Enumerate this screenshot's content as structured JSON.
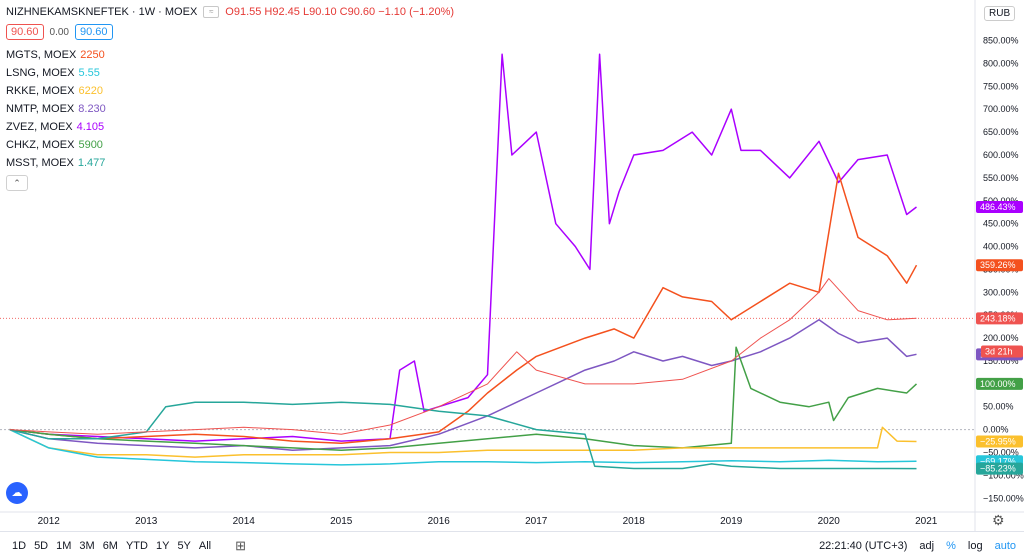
{
  "header": {
    "symbol": "NIZHNEKAMSKNEFTEK · 1W · MOEX",
    "ohlc": "O91.55 H92.45 L90.10 C90.60 −1.10 (−1.20%)",
    "price_left": "90.60",
    "price_mid": "0.00",
    "price_right": "90.60",
    "currency": "RUB"
  },
  "comparisons": [
    {
      "name": "MGTS, MOEX",
      "value": "2250",
      "color": "#f4511e"
    },
    {
      "name": "LSNG, MOEX",
      "value": "5.55",
      "color": "#26c6da"
    },
    {
      "name": "RKKE, MOEX",
      "value": "6220",
      "color": "#fbc02d"
    },
    {
      "name": "NMTP, MOEX",
      "value": "8.230",
      "color": "#7e57c2"
    },
    {
      "name": "ZVEZ, MOEX",
      "value": "4.105",
      "color": "#aa00ff"
    },
    {
      "name": "CHKZ, MOEX",
      "value": "5900",
      "color": "#43a047"
    },
    {
      "name": "MSST, MOEX",
      "value": "1.477",
      "color": "#26a69a"
    }
  ],
  "bottom": {
    "timeframes": [
      "1D",
      "5D",
      "1M",
      "3M",
      "6M",
      "YTD",
      "1Y",
      "5Y",
      "All"
    ],
    "calendar_icon": "calendar-icon",
    "time": "22:21:40 (UTC+3)",
    "adj": "adj",
    "percent": "%",
    "log": "log",
    "auto": "auto"
  },
  "chart_data": {
    "type": "line",
    "y_unit": "percent",
    "ylim": [
      -180,
      895
    ],
    "xlim": [
      2011.5,
      2021.5
    ],
    "x_ticks": [
      "2012",
      "2013",
      "2014",
      "2015",
      "2016",
      "2017",
      "2018",
      "2019",
      "2020",
      "2021"
    ],
    "x_tick_values": [
      2012,
      2013,
      2014,
      2015,
      2016,
      2017,
      2018,
      2019,
      2020,
      2021
    ],
    "y_ticks": [
      "850.00%",
      "800.00%",
      "750.00%",
      "700.00%",
      "650.00%",
      "600.00%",
      "550.00%",
      "500.00%",
      "450.00%",
      "400.00%",
      "350.00%",
      "300.00%",
      "250.00%",
      "200.00%",
      "150.00%",
      "100.00%",
      "50.00%",
      "0.00%",
      "−50.00%",
      "−100.00%",
      "−150.00%"
    ],
    "y_tick_values": [
      850,
      800,
      750,
      700,
      650,
      600,
      550,
      500,
      450,
      400,
      350,
      300,
      250,
      200,
      150,
      100,
      50,
      0,
      -50,
      -100,
      -150
    ],
    "grid": false,
    "series": [
      {
        "name": "ZVEZ",
        "color": "#aa00ff",
        "last_label": "486.43%",
        "last_value": 486.43,
        "x": [
          2011.6,
          2012.0,
          2012.5,
          2013.0,
          2013.5,
          2014.0,
          2014.5,
          2015.0,
          2015.5,
          2015.6,
          2015.75,
          2015.85,
          2016.0,
          2016.3,
          2016.5,
          2016.65,
          2016.75,
          2016.85,
          2017.0,
          2017.2,
          2017.4,
          2017.55,
          2017.65,
          2017.75,
          2017.85,
          2018.0,
          2018.3,
          2018.6,
          2018.8,
          2019.0,
          2019.1,
          2019.3,
          2019.6,
          2019.9,
          2020.1,
          2020.3,
          2020.6,
          2020.8,
          2020.9
        ],
        "values": [
          0,
          -10,
          -15,
          -20,
          -25,
          -20,
          -15,
          -25,
          -20,
          130,
          150,
          40,
          50,
          70,
          120,
          820,
          600,
          620,
          650,
          450,
          400,
          350,
          820,
          450,
          520,
          600,
          610,
          650,
          600,
          700,
          610,
          610,
          550,
          630,
          540,
          590,
          600,
          470,
          486.43
        ]
      },
      {
        "name": "MGTS",
        "color": "#f4511e",
        "last_label": "359.26%",
        "last_value": 359.26,
        "x": [
          2011.6,
          2012.0,
          2012.5,
          2013.0,
          2013.5,
          2014.0,
          2014.5,
          2015.0,
          2015.5,
          2016.0,
          2016.3,
          2016.5,
          2016.8,
          2017.0,
          2017.5,
          2017.8,
          2018.0,
          2018.3,
          2018.5,
          2018.8,
          2019.0,
          2019.3,
          2019.6,
          2019.9,
          2020.1,
          2020.3,
          2020.6,
          2020.8,
          2020.9
        ],
        "values": [
          0,
          -10,
          -20,
          -15,
          -10,
          -15,
          -25,
          -30,
          -20,
          -5,
          40,
          80,
          130,
          160,
          200,
          220,
          200,
          310,
          290,
          280,
          240,
          280,
          320,
          300,
          560,
          420,
          380,
          320,
          359.26
        ]
      },
      {
        "name": "NMTP",
        "color": "#7e57c2",
        "last_label": "164.46%",
        "last_value": 164.46,
        "x": [
          2011.6,
          2012.0,
          2012.5,
          2013.0,
          2013.5,
          2014.0,
          2014.5,
          2015.0,
          2015.5,
          2016.0,
          2016.5,
          2016.8,
          2017.0,
          2017.5,
          2017.8,
          2018.0,
          2018.3,
          2018.5,
          2018.8,
          2019.0,
          2019.3,
          2019.6,
          2019.9,
          2020.1,
          2020.3,
          2020.6,
          2020.8,
          2020.9
        ],
        "values": [
          0,
          -20,
          -30,
          -35,
          -40,
          -35,
          -45,
          -40,
          -35,
          -10,
          30,
          60,
          80,
          130,
          150,
          170,
          150,
          160,
          140,
          150,
          170,
          200,
          240,
          210,
          190,
          200,
          160,
          164.46
        ]
      },
      {
        "name": "CHKZ",
        "color": "#43a047",
        "last_label": "100.00%",
        "last_value": 100.0,
        "x": [
          2011.6,
          2012.0,
          2012.5,
          2013.0,
          2013.5,
          2014.0,
          2014.5,
          2015.0,
          2015.5,
          2016.0,
          2016.5,
          2017.0,
          2017.5,
          2018.0,
          2018.5,
          2019.0,
          2019.05,
          2019.2,
          2019.5,
          2019.8,
          2020.0,
          2020.05,
          2020.2,
          2020.5,
          2020.8,
          2020.9
        ],
        "values": [
          0,
          -10,
          -20,
          -25,
          -30,
          -35,
          -40,
          -45,
          -40,
          -30,
          -20,
          -10,
          -20,
          -35,
          -40,
          -30,
          180,
          90,
          60,
          50,
          60,
          20,
          70,
          90,
          80,
          100.0
        ]
      },
      {
        "name": "RKKE",
        "color": "#fbc02d",
        "last_label": "−25.95%",
        "last_value": -25.95,
        "x": [
          2011.6,
          2012.0,
          2012.5,
          2013.0,
          2013.5,
          2014.0,
          2014.5,
          2015.0,
          2015.5,
          2016.0,
          2016.5,
          2017.0,
          2017.5,
          2018.0,
          2018.5,
          2019.0,
          2019.5,
          2020.0,
          2020.5,
          2020.55,
          2020.7,
          2020.9
        ],
        "values": [
          0,
          -40,
          -55,
          -55,
          -60,
          -55,
          -55,
          -55,
          -50,
          -50,
          -45,
          -45,
          -45,
          -45,
          -40,
          -40,
          -40,
          -40,
          -40,
          5,
          -25,
          -25.95
        ]
      },
      {
        "name": "LSNG",
        "color": "#26c6da",
        "last_label": "−69.17%",
        "last_value": -69.17,
        "x": [
          2011.6,
          2012.0,
          2012.5,
          2013.0,
          2013.5,
          2014.0,
          2014.5,
          2015.0,
          2015.5,
          2016.0,
          2016.5,
          2017.0,
          2017.5,
          2018.0,
          2018.5,
          2019.0,
          2019.5,
          2020.0,
          2020.5,
          2020.9
        ],
        "values": [
          0,
          -40,
          -60,
          -65,
          -70,
          -72,
          -75,
          -77,
          -75,
          -70,
          -70,
          -72,
          -70,
          -72,
          -70,
          -68,
          -70,
          -67,
          -70,
          -69.17
        ]
      },
      {
        "name": "MSST",
        "color": "#26a69a",
        "last_label": "−85.23%",
        "last_value": -85.23,
        "x": [
          2011.6,
          2012.0,
          2012.5,
          2013.0,
          2013.2,
          2013.5,
          2014.0,
          2014.5,
          2015.0,
          2015.5,
          2016.0,
          2016.5,
          2017.0,
          2017.5,
          2017.6,
          2018.0,
          2018.5,
          2018.8,
          2019.0,
          2019.5,
          2020.0,
          2020.5,
          2020.9
        ],
        "values": [
          0,
          -20,
          -20,
          -5,
          50,
          60,
          60,
          55,
          60,
          55,
          40,
          30,
          0,
          -10,
          -80,
          -85,
          -85,
          -75,
          -80,
          -85,
          -85,
          -85,
          -85.23
        ]
      },
      {
        "name": "NIZHNEKAMSKNEFTEK",
        "color": "#ef5350",
        "last_label": "243.18%",
        "last_value": 243.18,
        "x": [
          2011.6,
          2012.0,
          2012.5,
          2013.0,
          2013.5,
          2014.0,
          2014.5,
          2015.0,
          2015.5,
          2016.0,
          2016.5,
          2016.8,
          2017.0,
          2017.5,
          2018.0,
          2018.5,
          2019.0,
          2019.3,
          2019.6,
          2019.9,
          2020.0,
          2020.3,
          2020.6,
          2020.9
        ],
        "values": [
          0,
          -5,
          -10,
          -5,
          0,
          5,
          0,
          -10,
          10,
          50,
          100,
          170,
          130,
          100,
          100,
          110,
          150,
          200,
          240,
          300,
          330,
          260,
          240,
          243.18
        ]
      }
    ],
    "extra_labels": [
      {
        "text": "3d 21h",
        "color": "#ef5350",
        "value": 210
      }
    ]
  }
}
